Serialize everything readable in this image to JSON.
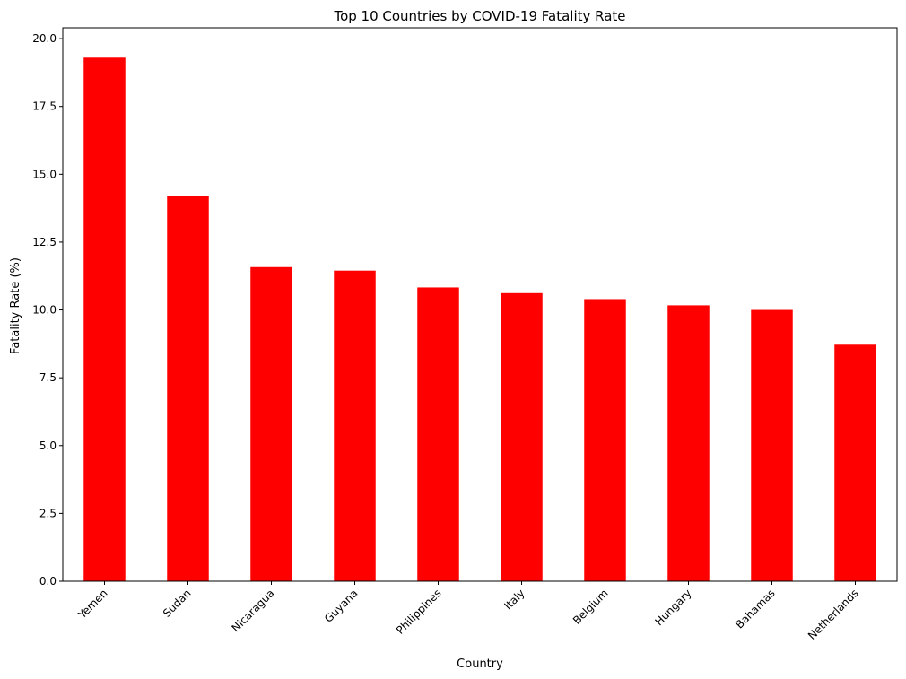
{
  "chart_data": {
    "type": "bar",
    "title": "Top 10 Countries by COVID-19 Fatality Rate",
    "xlabel": "Country",
    "ylabel": "Fatality Rate (%)",
    "categories": [
      "Yemen",
      "Sudan",
      "Nicaragua",
      "Guyana",
      "Philippines",
      "Italy",
      "Belgium",
      "Hungary",
      "Bahamas",
      "Netherlands"
    ],
    "values": [
      19.3,
      14.2,
      11.58,
      11.45,
      10.83,
      10.62,
      10.4,
      10.17,
      10.0,
      8.72
    ],
    "ylim": [
      0,
      20.4
    ],
    "yticks": [
      0.0,
      2.5,
      5.0,
      7.5,
      10.0,
      12.5,
      15.0,
      17.5,
      20.0
    ],
    "ytick_labels": [
      "0.0",
      "2.5",
      "5.0",
      "7.5",
      "10.0",
      "12.5",
      "15.0",
      "17.5",
      "20.0"
    ],
    "bar_color": "#ff0000",
    "grid": false,
    "legend": "none"
  }
}
